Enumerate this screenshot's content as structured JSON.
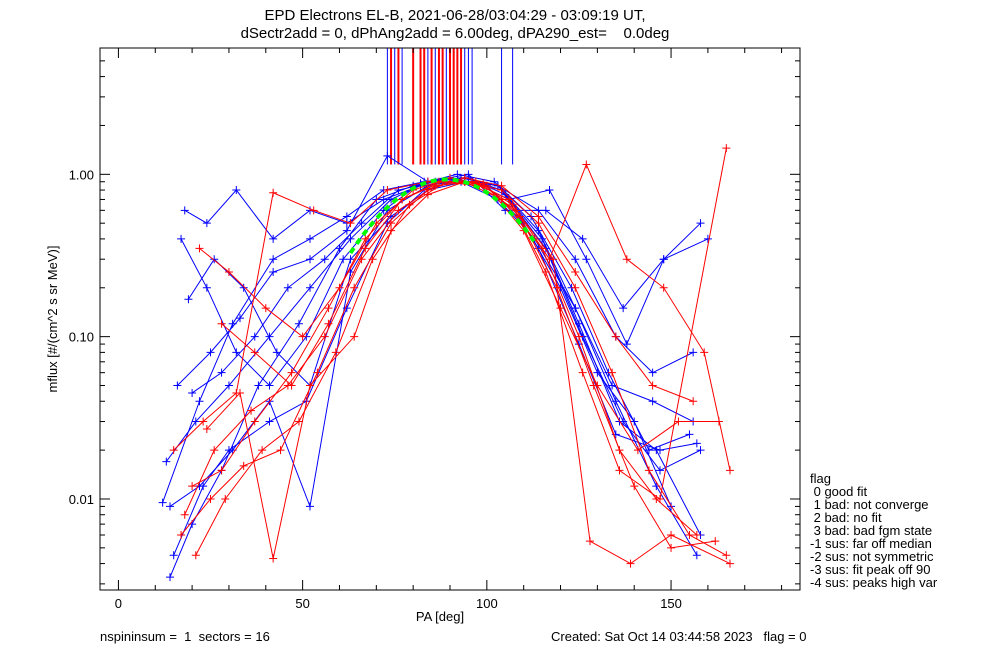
{
  "chart_data": {
    "type": "line",
    "title_line1": "EPD Electrons EL-B, 2021-06-28/03:04:29 - 03:09:19 UT,",
    "title_line2": "dSectr2add = 0, dPhAng2add = 6.00deg, dPA290_est=    0.0deg",
    "xlabel": "PA [deg]",
    "ylabel": "mflux [#/(cm^2 s sr MeV)]",
    "xlim": [
      -5,
      185
    ],
    "ylim": [
      0.00275,
      6.0
    ],
    "yscale": "log",
    "xticks": [
      0,
      50,
      100,
      150
    ],
    "xtick_labels": [
      "0",
      "50",
      "100",
      "150"
    ],
    "yticks": [
      0.01,
      0.1,
      1.0
    ],
    "ytick_labels": [
      "0.01",
      "0.10",
      "1.00"
    ],
    "colors": {
      "red": "#ff0000",
      "blue": "#0000ff",
      "fit": "#00ff00"
    },
    "series": [
      {
        "name": "blue-1",
        "color": "blue",
        "points": [
          [
            13,
            0.017
          ],
          [
            21,
            0.03
          ],
          [
            30,
            0.05
          ],
          [
            41,
            0.1
          ],
          [
            52,
            0.2
          ],
          [
            63,
            0.4
          ],
          [
            74,
            0.7
          ],
          [
            84,
            0.9
          ],
          [
            95,
            0.95
          ],
          [
            105,
            0.75
          ],
          [
            116,
            0.35
          ],
          [
            126,
            0.1
          ],
          [
            137,
            0.03
          ],
          [
            147,
            0.015
          ],
          [
            158,
            0.02
          ]
        ]
      },
      {
        "name": "blue-2",
        "color": "blue",
        "points": [
          [
            18,
            0.6
          ],
          [
            24,
            0.5
          ],
          [
            32,
            0.8
          ],
          [
            42,
            0.4
          ],
          [
            52,
            0.6
          ],
          [
            62,
            0.5
          ],
          [
            72,
            0.7
          ],
          [
            82,
            0.85
          ],
          [
            93,
            0.9
          ],
          [
            103,
            0.7
          ],
          [
            113,
            0.4
          ],
          [
            124,
            0.15
          ],
          [
            134,
            0.05
          ],
          [
            145,
            0.04
          ],
          [
            156,
            0.03
          ]
        ]
      },
      {
        "name": "blue-3",
        "color": "blue",
        "points": [
          [
            14,
            0.009
          ],
          [
            22,
            0.012
          ],
          [
            31,
            0.02
          ],
          [
            41,
            0.04
          ],
          [
            52,
            0.009
          ],
          [
            63,
            0.25
          ],
          [
            73,
            0.6
          ],
          [
            84,
            0.85
          ],
          [
            94,
            0.95
          ],
          [
            104,
            0.8
          ],
          [
            115,
            0.4
          ],
          [
            125,
            0.12
          ],
          [
            136,
            0.03
          ],
          [
            146,
            0.02
          ],
          [
            158,
            0.006
          ]
        ]
      },
      {
        "name": "blue-4",
        "color": "blue",
        "points": [
          [
            16,
            0.05
          ],
          [
            25,
            0.08
          ],
          [
            33,
            0.13
          ],
          [
            42,
            0.25
          ],
          [
            52,
            0.3
          ],
          [
            62,
            0.45
          ],
          [
            73,
            1.3
          ],
          [
            84,
            0.9
          ],
          [
            95,
            1.0
          ],
          [
            105,
            0.6
          ],
          [
            116,
            0.6
          ],
          [
            126,
            0.4
          ],
          [
            137,
            0.15
          ],
          [
            148,
            0.3
          ],
          [
            158,
            0.5
          ]
        ]
      },
      {
        "name": "blue-5",
        "color": "blue",
        "points": [
          [
            19,
            0.17
          ],
          [
            26,
            0.3
          ],
          [
            34,
            0.2
          ],
          [
            43,
            0.08
          ],
          [
            52,
            0.05
          ],
          [
            63,
            0.3
          ],
          [
            74,
            0.55
          ],
          [
            84,
            0.8
          ],
          [
            94,
            0.9
          ],
          [
            104,
            0.8
          ],
          [
            114,
            0.35
          ],
          [
            125,
            0.09
          ],
          [
            135,
            0.025
          ],
          [
            147,
            0.02
          ],
          [
            157,
            0.022
          ]
        ]
      },
      {
        "name": "blue-6",
        "color": "blue",
        "points": [
          [
            15,
            0.0045
          ],
          [
            23,
            0.012
          ],
          [
            30,
            0.02
          ],
          [
            41,
            0.03
          ],
          [
            51,
            0.04
          ],
          [
            62,
            0.15
          ],
          [
            73,
            0.5
          ],
          [
            83,
            0.8
          ],
          [
            93,
            0.92
          ],
          [
            103,
            0.85
          ],
          [
            114,
            0.45
          ],
          [
            124,
            0.15
          ],
          [
            135,
            0.04
          ],
          [
            146,
            0.012
          ],
          [
            157,
            0.0045
          ]
        ]
      },
      {
        "name": "blue-7",
        "color": "blue",
        "points": [
          [
            12,
            0.0095
          ],
          [
            22,
            0.04
          ],
          [
            31,
            0.12
          ],
          [
            42,
            0.3
          ],
          [
            52,
            0.4
          ],
          [
            62,
            0.55
          ],
          [
            72,
            0.8
          ],
          [
            83,
            0.9
          ],
          [
            93,
            0.95
          ],
          [
            103,
            0.85
          ],
          [
            114,
            0.6
          ],
          [
            124,
            0.3
          ],
          [
            135,
            0.1
          ],
          [
            145,
            0.06
          ],
          [
            156,
            0.08
          ]
        ]
      },
      {
        "name": "blue-8",
        "color": "blue",
        "points": [
          [
            17,
            0.4
          ],
          [
            24,
            0.2
          ],
          [
            32,
            0.08
          ],
          [
            41,
            0.05
          ],
          [
            51,
            0.1
          ],
          [
            61,
            0.3
          ],
          [
            72,
            0.6
          ],
          [
            82,
            0.88
          ],
          [
            92,
            1.0
          ],
          [
            102,
            0.9
          ],
          [
            112,
            0.55
          ],
          [
            123,
            0.2
          ],
          [
            133,
            0.06
          ],
          [
            144,
            0.02
          ],
          [
            155,
            0.025
          ]
        ]
      },
      {
        "name": "blue-9",
        "color": "blue",
        "points": [
          [
            14,
            0.0033
          ],
          [
            20,
            0.007
          ],
          [
            28,
            0.015
          ],
          [
            38,
            0.05
          ],
          [
            49,
            0.12
          ],
          [
            60,
            0.35
          ],
          [
            70,
            0.7
          ],
          [
            80,
            0.85
          ],
          [
            90,
            0.95
          ],
          [
            100,
            0.85
          ],
          [
            110,
            0.5
          ],
          [
            120,
            0.2
          ],
          [
            130,
            0.06
          ],
          [
            140,
            0.03
          ],
          [
            150,
            0.009
          ]
        ]
      },
      {
        "name": "blue-10",
        "color": "blue",
        "points": [
          [
            20,
            0.045
          ],
          [
            28,
            0.06
          ],
          [
            37,
            0.1
          ],
          [
            46,
            0.2
          ],
          [
            56,
            0.3
          ],
          [
            66,
            0.5
          ],
          [
            76,
            0.8
          ],
          [
            86,
            0.9
          ],
          [
            96,
            0.9
          ],
          [
            106,
            0.7
          ],
          [
            117,
            0.8
          ],
          [
            127,
            0.3
          ],
          [
            138,
            0.09
          ],
          [
            148,
            0.3
          ],
          [
            160,
            0.4
          ]
        ]
      },
      {
        "name": "red-1",
        "color": "red",
        "points": [
          [
            15,
            0.02
          ],
          [
            23,
            0.03
          ],
          [
            32,
            0.045
          ],
          [
            42,
            0.77
          ],
          [
            53,
            0.6
          ],
          [
            63,
            0.5
          ],
          [
            73,
            0.8
          ],
          [
            84,
            0.9
          ],
          [
            94,
            0.9
          ],
          [
            104,
            0.7
          ],
          [
            115,
            0.35
          ],
          [
            125,
            0.1
          ],
          [
            136,
            0.02
          ],
          [
            146,
            0.01
          ],
          [
            157,
            0.006
          ]
        ]
      },
      {
        "name": "red-2",
        "color": "red",
        "points": [
          [
            20,
            0.012
          ],
          [
            28,
            0.015
          ],
          [
            37,
            0.03
          ],
          [
            47,
            0.06
          ],
          [
            57,
            0.15
          ],
          [
            67,
            0.4
          ],
          [
            77,
            0.7
          ],
          [
            88,
            0.9
          ],
          [
            98,
            0.85
          ],
          [
            108,
            0.6
          ],
          [
            118,
            0.3
          ],
          [
            128,
            0.0055
          ],
          [
            139,
            0.004
          ],
          [
            150,
            0.006
          ],
          [
            166,
            0.004
          ]
        ]
      },
      {
        "name": "red-3",
        "color": "red",
        "points": [
          [
            18,
            0.008
          ],
          [
            26,
            0.02
          ],
          [
            36,
            0.035
          ],
          [
            46,
            0.05
          ],
          [
            56,
            0.1
          ],
          [
            66,
            0.3
          ],
          [
            76,
            0.6
          ],
          [
            86,
            0.85
          ],
          [
            96,
            0.9
          ],
          [
            106,
            0.7
          ],
          [
            116,
            0.25
          ],
          [
            126,
            0.06
          ],
          [
            136,
            0.015
          ],
          [
            147,
            0.01
          ],
          [
            165,
            1.45
          ]
        ]
      },
      {
        "name": "red-4",
        "color": "red",
        "points": [
          [
            22,
            0.35
          ],
          [
            30,
            0.25
          ],
          [
            40,
            0.15
          ],
          [
            50,
            0.1
          ],
          [
            60,
            0.2
          ],
          [
            70,
            0.5
          ],
          [
            80,
            0.8
          ],
          [
            90,
            0.95
          ],
          [
            100,
            0.85
          ],
          [
            110,
            0.45
          ],
          [
            120,
            0.15
          ],
          [
            130,
            0.05
          ],
          [
            141,
            0.02
          ],
          [
            152,
            0.03
          ],
          [
            163,
            0.03
          ]
        ]
      },
      {
        "name": "red-5",
        "color": "red",
        "points": [
          [
            24,
            0.027
          ],
          [
            33,
            0.045
          ],
          [
            42,
            0.0043
          ],
          [
            52,
            0.05
          ],
          [
            64,
            0.1
          ],
          [
            74,
            0.45
          ],
          [
            84,
            0.75
          ],
          [
            94,
            0.9
          ],
          [
            104,
            0.8
          ],
          [
            114,
            0.5
          ],
          [
            124,
            0.2
          ],
          [
            134,
            0.06
          ],
          [
            144,
            0.015
          ],
          [
            155,
            0.006
          ],
          [
            165,
            0.0045
          ]
        ]
      },
      {
        "name": "red-6",
        "color": "red",
        "points": [
          [
            17,
            0.006
          ],
          [
            25,
            0.01
          ],
          [
            34,
            0.016
          ],
          [
            44,
            0.02
          ],
          [
            54,
            0.06
          ],
          [
            64,
            0.2
          ],
          [
            74,
            0.5
          ],
          [
            84,
            0.8
          ],
          [
            94,
            0.95
          ],
          [
            104,
            0.85
          ],
          [
            114,
            0.55
          ],
          [
            124,
            0.25
          ],
          [
            135,
            0.1
          ],
          [
            145,
            0.05
          ],
          [
            156,
            0.04
          ]
        ]
      },
      {
        "name": "red-7",
        "color": "red",
        "points": [
          [
            28,
            0.12
          ],
          [
            37,
            0.08
          ],
          [
            47,
            0.05
          ],
          [
            57,
            0.12
          ],
          [
            67,
            0.35
          ],
          [
            77,
            0.7
          ],
          [
            87,
            0.9
          ],
          [
            97,
            0.9
          ],
          [
            107,
            0.65
          ],
          [
            117,
            0.3
          ],
          [
            127,
            1.15
          ],
          [
            138,
            0.3
          ],
          [
            148,
            0.2
          ],
          [
            159,
            0.08
          ],
          [
            166,
            0.015
          ]
        ]
      },
      {
        "name": "red-8",
        "color": "red",
        "points": [
          [
            21,
            0.0045
          ],
          [
            29,
            0.01
          ],
          [
            39,
            0.02
          ],
          [
            49,
            0.03
          ],
          [
            59,
            0.08
          ],
          [
            69,
            0.3
          ],
          [
            79,
            0.65
          ],
          [
            89,
            0.9
          ],
          [
            99,
            0.88
          ],
          [
            109,
            0.55
          ],
          [
            119,
            0.2
          ],
          [
            129,
            0.05
          ],
          [
            140,
            0.012
          ],
          [
            150,
            0.005
          ],
          [
            162,
            0.0055
          ]
        ]
      }
    ],
    "saturated_spikes": {
      "blue": [
        73,
        75,
        77,
        84,
        86,
        88,
        89,
        90,
        91,
        92,
        93,
        94,
        95,
        96,
        104,
        107
      ],
      "red": [
        74,
        76,
        80,
        82,
        83,
        85,
        87,
        88,
        90,
        91,
        92,
        93
      ],
      "from_flux": 1.15
    },
    "fit": {
      "type": "gaussian",
      "peak": 0.93,
      "center": 89,
      "sigma": 18,
      "pa_range": [
        63,
        113
      ],
      "color": "fit",
      "style": "dashed"
    },
    "legend": {
      "title": "flag",
      "entries": [
        " 0 good fit",
        " 1 bad: not converge",
        " 2 bad: no fit",
        " 3 bad: bad fgm state",
        "-1 sus: far off median",
        "-2 sus: not symmetric",
        "-3 sus: fit peak off 90",
        "-4 sus: peaks high var"
      ],
      "placement": "right"
    },
    "footer_left": "nspininsum =  1  sectors = 16",
    "footer_right": "Created: Sat Oct 14 03:44:58 2023   flag = 0"
  }
}
